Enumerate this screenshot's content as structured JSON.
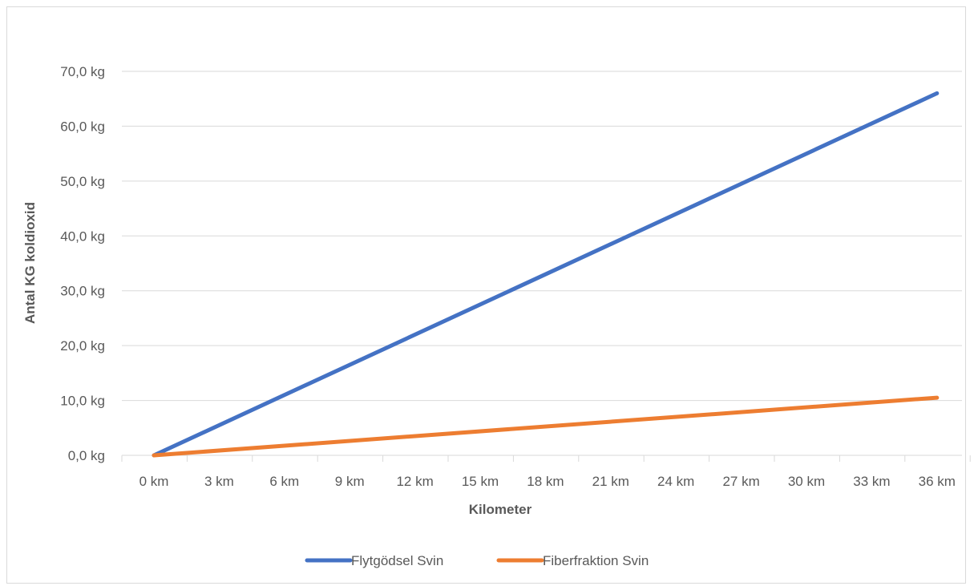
{
  "chart_data": {
    "type": "line",
    "xlabel": "Kilometer",
    "ylabel": "Antal KG koldioxid",
    "categories": [
      "0 km",
      "3 km",
      "6 km",
      "9 km",
      "12 km",
      "15 km",
      "18 km",
      "21 km",
      "24 km",
      "27 km",
      "30 km",
      "33 km",
      "36 km"
    ],
    "x": [
      0,
      3,
      6,
      9,
      12,
      15,
      18,
      21,
      24,
      27,
      30,
      33,
      36
    ],
    "ylim": [
      0,
      70
    ],
    "yticks": [
      0,
      10,
      20,
      30,
      40,
      50,
      60,
      70
    ],
    "ytick_labels": [
      "0,0 kg",
      "10,0 kg",
      "20,0 kg",
      "30,0 kg",
      "40,0 kg",
      "50,0 kg",
      "60,0 kg",
      "70,0 kg"
    ],
    "grid": true,
    "legend_position": "bottom",
    "series": [
      {
        "name": "Flytgödsel Svin",
        "color": "#4472C4",
        "x": [
          0,
          36
        ],
        "values": [
          0,
          66.0
        ]
      },
      {
        "name": "Fiberfraktion Svin",
        "color": "#ED7D31",
        "x": [
          0,
          36
        ],
        "values": [
          0,
          10.5
        ]
      }
    ]
  }
}
